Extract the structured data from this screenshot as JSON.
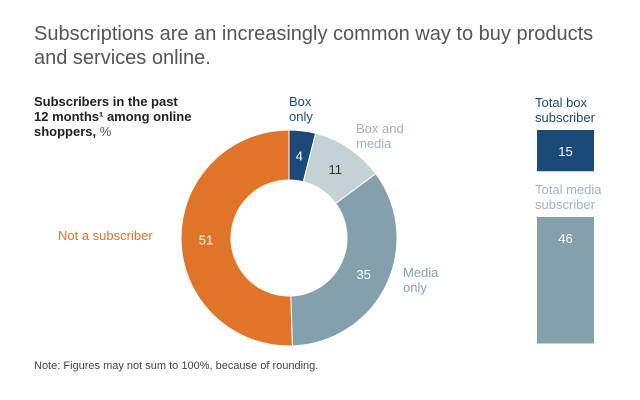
{
  "title": "Subscriptions are an increasingly common way to buy products and services online.",
  "subtitle": {
    "main": "Subscribers in the past 12 months¹ among online shoppers,",
    "unit": "%"
  },
  "note": "Note: Figures may not sum to 100%, because of rounding.",
  "chart_data": [
    {
      "type": "pie",
      "style": "donut",
      "categories": [
        "Box only",
        "Box and media",
        "Media only",
        "Not a subscriber"
      ],
      "values": [
        4,
        11,
        35,
        51
      ],
      "colors": [
        "#1B4A78",
        "#C4D2D8",
        "#84A0AD",
        "#E07428"
      ],
      "label_colors": [
        "#1B4A78",
        "#9FB4BE",
        "#84A0AD",
        "#E07428"
      ]
    },
    {
      "type": "bar",
      "categories": [
        "Total box subscriber",
        "Total media subscriber"
      ],
      "values": [
        15,
        46
      ],
      "colors": [
        "#1B4A78",
        "#84A0AD"
      ],
      "label_colors": [
        "#1B4A78",
        "#9FB4BE"
      ]
    }
  ]
}
